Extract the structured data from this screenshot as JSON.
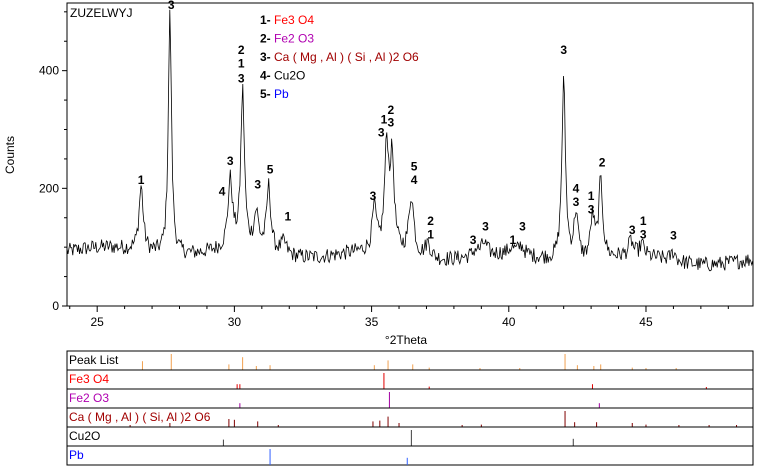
{
  "chart_data": {
    "type": "line",
    "sample_label": "ZUZELWYJ",
    "xlabel": "°2Theta",
    "ylabel": "Counts",
    "xlim": [
      23.9,
      48.9
    ],
    "ylim": [
      0,
      515
    ],
    "x_ticks": [
      25,
      30,
      35,
      40,
      45
    ],
    "y_ticks": [
      0,
      200,
      400
    ],
    "grid": false,
    "legend_position": "top-center",
    "phases": [
      {
        "id": "1",
        "name": "Fe3 O4",
        "color": "#ff0000"
      },
      {
        "id": "2",
        "name": "Fe2 O3",
        "color": "#b000b0"
      },
      {
        "id": "3",
        "name": "Ca ( Mg , Al ) ( Si , Al )2 O6",
        "color": "#a00000"
      },
      {
        "id": "4",
        "name": "Cu2O",
        "color": "#000000"
      },
      {
        "id": "5",
        "name": "Pb",
        "color": "#0000ff"
      }
    ],
    "series": [
      {
        "name": "",
        "baseline": 95,
        "peaks": [
          [
            26.6,
            110,
            0.09
          ],
          [
            27.65,
            410,
            0.07
          ],
          [
            29.85,
            115,
            0.1
          ],
          [
            30.3,
            265,
            0.08
          ],
          [
            30.8,
            60,
            0.1
          ],
          [
            31.25,
            110,
            0.09
          ],
          [
            31.8,
            20,
            0.12
          ],
          [
            35.1,
            72,
            0.09
          ],
          [
            35.55,
            175,
            0.09
          ],
          [
            35.75,
            150,
            0.09
          ],
          [
            36.45,
            100,
            0.11
          ],
          [
            37.05,
            25,
            0.12
          ],
          [
            38.8,
            10,
            0.12
          ],
          [
            39.1,
            20,
            0.12
          ],
          [
            40.1,
            10,
            0.12
          ],
          [
            40.45,
            15,
            0.12
          ],
          [
            42.0,
            305,
            0.08
          ],
          [
            42.45,
            80,
            0.09
          ],
          [
            43.05,
            70,
            0.09
          ],
          [
            43.35,
            130,
            0.09
          ],
          [
            44.45,
            25,
            0.1
          ],
          [
            44.85,
            20,
            0.1
          ],
          [
            46.0,
            15,
            0.1
          ]
        ]
      }
    ],
    "peak_labels": [
      {
        "x": 26.6,
        "y": 207,
        "text": "1"
      },
      {
        "x": 27.7,
        "y": 505,
        "text": "3"
      },
      {
        "x": 29.55,
        "y": 188,
        "text": "4"
      },
      {
        "x": 29.85,
        "y": 240,
        "text": "3"
      },
      {
        "x": 30.25,
        "y": 428,
        "text": "2"
      },
      {
        "x": 30.25,
        "y": 405,
        "text": "1"
      },
      {
        "x": 30.25,
        "y": 380,
        "text": "3"
      },
      {
        "x": 30.85,
        "y": 200,
        "text": "3"
      },
      {
        "x": 31.3,
        "y": 225,
        "text": "5"
      },
      {
        "x": 31.95,
        "y": 145,
        "text": "1"
      },
      {
        "x": 35.05,
        "y": 180,
        "text": "3"
      },
      {
        "x": 35.35,
        "y": 288,
        "text": "3"
      },
      {
        "x": 35.45,
        "y": 310,
        "text": "1"
      },
      {
        "x": 35.7,
        "y": 326,
        "text": "2"
      },
      {
        "x": 35.7,
        "y": 305,
        "text": "3"
      },
      {
        "x": 36.55,
        "y": 230,
        "text": "5"
      },
      {
        "x": 36.55,
        "y": 207,
        "text": "4"
      },
      {
        "x": 37.15,
        "y": 138,
        "text": "2"
      },
      {
        "x": 37.15,
        "y": 115,
        "text": "1"
      },
      {
        "x": 38.7,
        "y": 105,
        "text": "3"
      },
      {
        "x": 39.15,
        "y": 128,
        "text": "3"
      },
      {
        "x": 40.15,
        "y": 105,
        "text": "1"
      },
      {
        "x": 40.5,
        "y": 128,
        "text": "3"
      },
      {
        "x": 42.0,
        "y": 428,
        "text": "3"
      },
      {
        "x": 42.45,
        "y": 193,
        "text": "4"
      },
      {
        "x": 42.45,
        "y": 170,
        "text": "3"
      },
      {
        "x": 43.0,
        "y": 180,
        "text": "1"
      },
      {
        "x": 43.0,
        "y": 157,
        "text": "3"
      },
      {
        "x": 43.4,
        "y": 237,
        "text": "2"
      },
      {
        "x": 44.5,
        "y": 122,
        "text": "3"
      },
      {
        "x": 44.9,
        "y": 138,
        "text": "1"
      },
      {
        "x": 44.9,
        "y": 115,
        "text": "3"
      },
      {
        "x": 46.0,
        "y": 113,
        "text": "3"
      }
    ],
    "stick_panel": {
      "rows": [
        {
          "name": "Peak List",
          "color": "#000000",
          "stick_color": "#f0a050",
          "sticks": [
            [
              26.65,
              0.55
            ],
            [
              27.7,
              1.0
            ],
            [
              29.8,
              0.35
            ],
            [
              30.3,
              0.8
            ],
            [
              30.8,
              0.25
            ],
            [
              31.3,
              0.3
            ],
            [
              35.1,
              0.3
            ],
            [
              35.6,
              0.6
            ],
            [
              36.5,
              0.35
            ],
            [
              37.1,
              0.15
            ],
            [
              38.95,
              0.1
            ],
            [
              40.4,
              0.1
            ],
            [
              42.05,
              1.0
            ],
            [
              42.5,
              0.3
            ],
            [
              43.1,
              0.25
            ],
            [
              43.35,
              0.35
            ],
            [
              44.5,
              0.15
            ],
            [
              45.0,
              0.12
            ],
            [
              46.1,
              0.1
            ]
          ]
        },
        {
          "name": "Fe3 O4",
          "color": "#ff0000",
          "stick_color": "#e00000",
          "sticks": [
            [
              30.1,
              0.3
            ],
            [
              30.2,
              0.3
            ],
            [
              35.45,
              1.0
            ],
            [
              37.1,
              0.15
            ],
            [
              43.05,
              0.3
            ],
            [
              47.2,
              0.12
            ]
          ]
        },
        {
          "name": "Fe2 O3",
          "color": "#b000b0",
          "stick_color": "#a000a0",
          "sticks": [
            [
              30.2,
              0.3
            ],
            [
              35.65,
              1.0
            ],
            [
              43.3,
              0.3
            ],
            [
              49.6,
              0.2
            ]
          ]
        },
        {
          "name": "Ca ( Mg , Al ) ( Si, Al )2 O6",
          "color": "#a00000",
          "stick_color": "#800000",
          "sticks": [
            [
              26.2,
              0.08
            ],
            [
              27.65,
              0.25
            ],
            [
              29.8,
              0.5
            ],
            [
              30.0,
              0.45
            ],
            [
              30.85,
              0.35
            ],
            [
              31.6,
              0.1
            ],
            [
              35.05,
              0.35
            ],
            [
              35.3,
              0.4
            ],
            [
              35.6,
              0.65
            ],
            [
              36.0,
              0.25
            ],
            [
              38.3,
              0.12
            ],
            [
              39.0,
              0.15
            ],
            [
              42.05,
              1.0
            ],
            [
              42.4,
              0.3
            ],
            [
              43.2,
              0.3
            ],
            [
              44.5,
              0.25
            ],
            [
              45.0,
              0.15
            ],
            [
              46.2,
              0.1
            ],
            [
              47.3,
              0.1
            ],
            [
              48.3,
              0.1
            ]
          ]
        },
        {
          "name": "Cu2O",
          "color": "#000000",
          "stick_color": "#404040",
          "sticks": [
            [
              29.6,
              0.4
            ],
            [
              36.45,
              1.0
            ],
            [
              42.35,
              0.45
            ]
          ]
        },
        {
          "name": "Pb",
          "color": "#0000ff",
          "stick_color": "#3060ff",
          "sticks": [
            [
              31.3,
              1.0
            ],
            [
              36.3,
              0.45
            ]
          ]
        }
      ]
    }
  }
}
